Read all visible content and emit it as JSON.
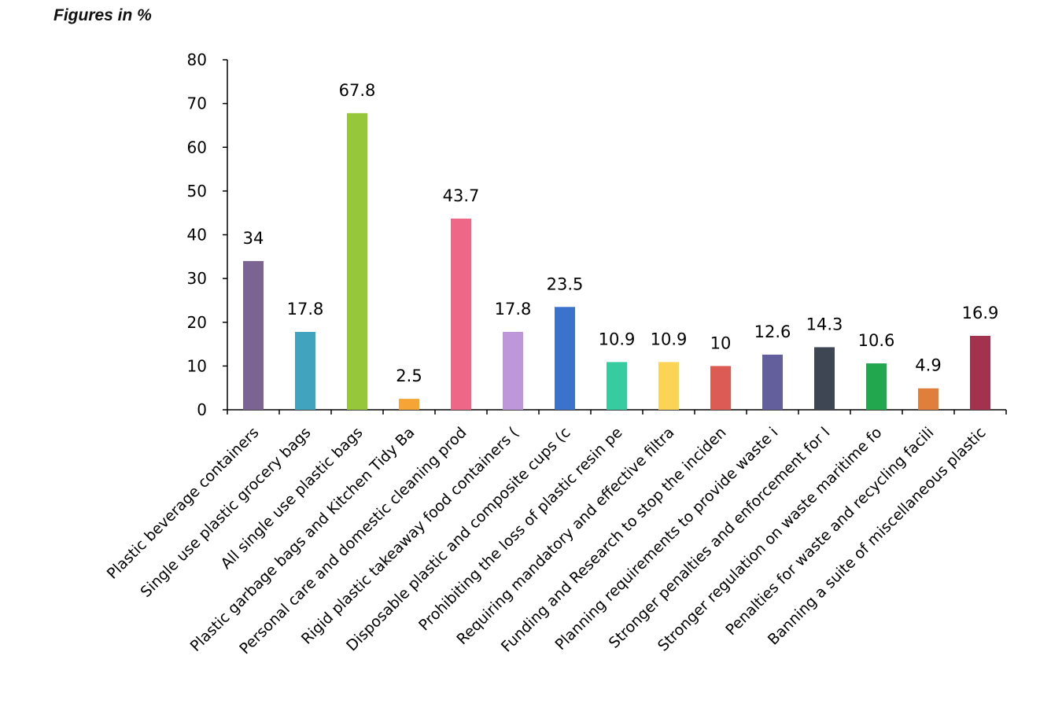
{
  "chart_data": {
    "type": "bar",
    "title": "Figures in %",
    "xlabel": "",
    "ylabel": "",
    "ylim": [
      0,
      80
    ],
    "yticks": [
      0,
      10,
      20,
      30,
      40,
      50,
      60,
      70,
      80
    ],
    "grid": false,
    "categories": [
      "Plastic beverage containers",
      "Single use plastic grocery bags",
      "All single use plastic bags",
      "Plastic garbage bags and Kitchen Tidy Ba",
      "Personal care and domestic cleaning prod",
      "Rigid plastic takeaway food containers (",
      "Disposable plastic and composite cups (c",
      "Prohibiting the loss of plastic resin pe",
      "Requiring mandatory and effective filtra",
      "Funding and Research to stop the inciden",
      "Planning requirements to provide waste i",
      "Stronger penalties and enforcement for l",
      "Stronger regulation on waste maritime fo",
      "Penalties for waste and recycling facili",
      "Banning a suite of miscellaneous plastic"
    ],
    "values": [
      34,
      17.8,
      67.8,
      2.5,
      43.7,
      17.8,
      23.5,
      10.9,
      10.9,
      10,
      12.6,
      14.3,
      10.6,
      4.9,
      16.9
    ],
    "data_labels": [
      "34",
      "17.8",
      "67.8",
      "2.5",
      "43.7",
      "17.8",
      "23.5",
      "10.9",
      "10.9",
      "10",
      "12.6",
      "14.3",
      "10.6",
      "4.9",
      "16.9"
    ],
    "colors": [
      "#7b6491",
      "#42a3bf",
      "#96c73a",
      "#f4a535",
      "#ec6886",
      "#be97db",
      "#3d72cc",
      "#36cca0",
      "#fbd455",
      "#dc5b55",
      "#635e9c",
      "#3e4654",
      "#22a64e",
      "#e07f3b",
      "#a3324e"
    ]
  }
}
